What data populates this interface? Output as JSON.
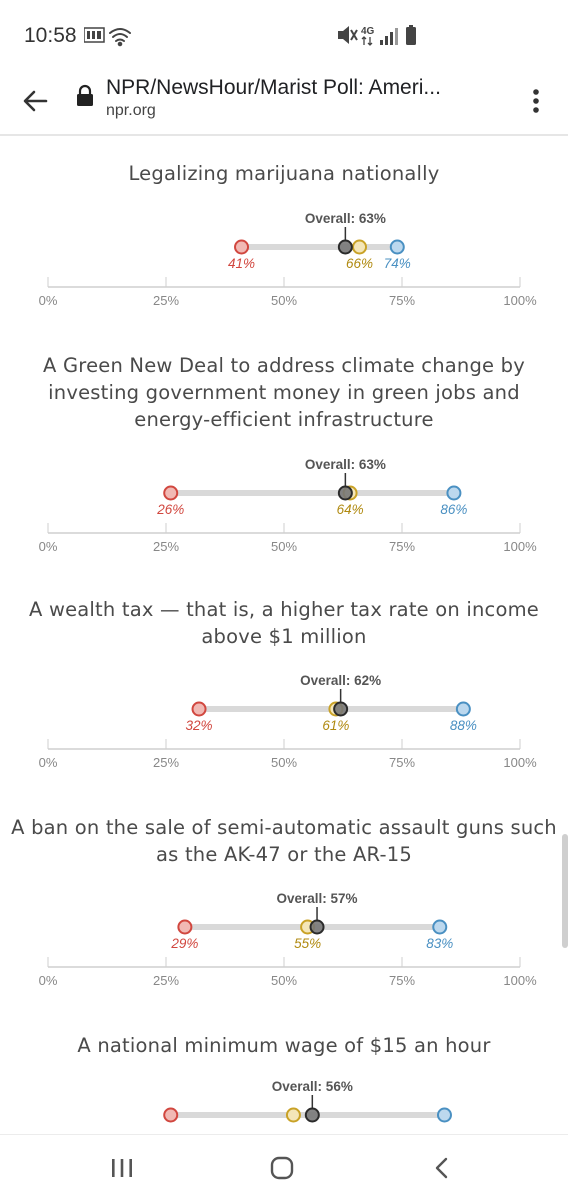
{
  "status_bar": {
    "time": "10:58",
    "icons": [
      "nyt-news-icon",
      "wifi-icon",
      "mute-icon",
      "lte-icon",
      "signal-icon",
      "battery-icon"
    ]
  },
  "browser": {
    "title": "NPR/NewsHour/Marist Poll: Ameri...",
    "url": "npr.org"
  },
  "colors": {
    "republican": "#d1473f",
    "independent": "#c9a227",
    "democrat": "#4a90c2",
    "overall": "#555555",
    "bar": "#d9d9d9",
    "axis": "#cfcfcf"
  },
  "chart_data": [
    {
      "type": "dot-range",
      "title": "Legalizing marijuana nationally",
      "overall_label": "Overall: 63%",
      "overall": 63,
      "points": [
        {
          "group": "red",
          "value": 41,
          "label": "41%"
        },
        {
          "group": "gold",
          "value": 66,
          "label": "66%"
        },
        {
          "group": "blue",
          "value": 74,
          "label": "74%"
        }
      ],
      "xlim": [
        0,
        100
      ],
      "ticks": [
        "0%",
        "25%",
        "50%",
        "75%",
        "100%"
      ]
    },
    {
      "type": "dot-range",
      "title": "A Green New Deal to address climate change by investing government money in green jobs and energy-efficient infrastructure",
      "overall_label": "Overall: 63%",
      "overall": 63,
      "points": [
        {
          "group": "red",
          "value": 26,
          "label": "26%"
        },
        {
          "group": "gold",
          "value": 64,
          "label": "64%"
        },
        {
          "group": "blue",
          "value": 86,
          "label": "86%"
        }
      ],
      "xlim": [
        0,
        100
      ],
      "ticks": [
        "0%",
        "25%",
        "50%",
        "75%",
        "100%"
      ]
    },
    {
      "type": "dot-range",
      "title": "A wealth tax — that is, a higher tax rate on income above $1 million",
      "overall_label": "Overall: 62%",
      "overall": 62,
      "points": [
        {
          "group": "red",
          "value": 32,
          "label": "32%"
        },
        {
          "group": "gold",
          "value": 61,
          "label": "61%"
        },
        {
          "group": "blue",
          "value": 88,
          "label": "88%"
        }
      ],
      "xlim": [
        0,
        100
      ],
      "ticks": [
        "0%",
        "25%",
        "50%",
        "75%",
        "100%"
      ]
    },
    {
      "type": "dot-range",
      "title": "A ban on the sale of semi-automatic assault guns such as the AK-47 or the AR-15",
      "overall_label": "Overall: 57%",
      "overall": 57,
      "points": [
        {
          "group": "red",
          "value": 29,
          "label": "29%"
        },
        {
          "group": "gold",
          "value": 55,
          "label": "55%"
        },
        {
          "group": "blue",
          "value": 83,
          "label": "83%"
        }
      ],
      "xlim": [
        0,
        100
      ],
      "ticks": [
        "0%",
        "25%",
        "50%",
        "75%",
        "100%"
      ]
    },
    {
      "type": "dot-range",
      "title": "A national minimum wage of $15 an hour",
      "overall_label": "Overall: 56%",
      "overall": 56,
      "points": [
        {
          "group": "red",
          "value": 26,
          "label": ""
        },
        {
          "group": "gold",
          "value": 52,
          "label": ""
        },
        {
          "group": "blue",
          "value": 84,
          "label": ""
        }
      ],
      "xlim": [
        0,
        100
      ],
      "ticks": []
    }
  ],
  "nav": {
    "recents": "recents-icon",
    "home": "home-icon",
    "back": "back-nav-icon"
  }
}
